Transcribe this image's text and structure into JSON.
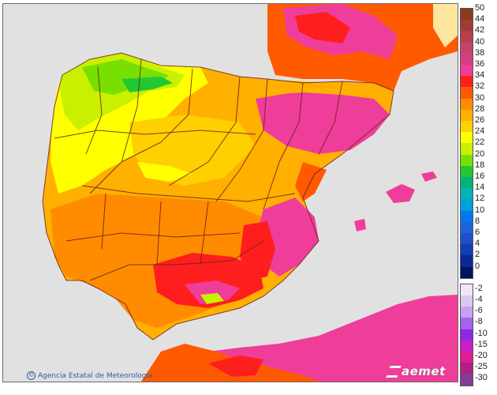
{
  "credit": {
    "text": "Agencia Estatal de Meteorología",
    "symbol": "©"
  },
  "logo": {
    "text": "aemet",
    "icon": "aemet-logo"
  },
  "legend": {
    "positive": [
      {
        "label": "50",
        "color": "#8b3a1a"
      },
      {
        "label": "44",
        "color": "#a33a3a"
      },
      {
        "label": "42",
        "color": "#b5404a"
      },
      {
        "label": "40",
        "color": "#c8436a"
      },
      {
        "label": "38",
        "color": "#d73d82"
      },
      {
        "label": "36",
        "color": "#ef3d9a"
      },
      {
        "label": "34",
        "color": "#ff1e1e"
      },
      {
        "label": "32",
        "color": "#ff5a00"
      },
      {
        "label": "30",
        "color": "#ff8c00"
      },
      {
        "label": "28",
        "color": "#ffb000"
      },
      {
        "label": "26",
        "color": "#ffd000"
      },
      {
        "label": "24",
        "color": "#ffff00"
      },
      {
        "label": "22",
        "color": "#c8f000"
      },
      {
        "label": "20",
        "color": "#78e000"
      },
      {
        "label": "18",
        "color": "#22c832"
      },
      {
        "label": "16",
        "color": "#00b478"
      },
      {
        "label": "14",
        "color": "#00b4b4"
      },
      {
        "label": "12",
        "color": "#00a0dc"
      },
      {
        "label": "10",
        "color": "#0078f0"
      },
      {
        "label": "8",
        "color": "#1e64dc"
      },
      {
        "label": "6",
        "color": "#1e50c8"
      },
      {
        "label": "4",
        "color": "#143cb4"
      },
      {
        "label": "2",
        "color": "#0a2896"
      },
      {
        "label": "0",
        "color": "#001464"
      }
    ],
    "negative": [
      {
        "label": "-2",
        "color": "#f0e6f8"
      },
      {
        "label": "-4",
        "color": "#dcc8f0"
      },
      {
        "label": "-6",
        "color": "#c8a0f0"
      },
      {
        "label": "-8",
        "color": "#a064f0"
      },
      {
        "label": "-10",
        "color": "#8c28e6"
      },
      {
        "label": "-15",
        "color": "#c81ec8"
      },
      {
        "label": "-20",
        "color": "#dc1e96"
      },
      {
        "label": "-25",
        "color": "#b41e82"
      },
      {
        "label": "-30",
        "color": "#823c96"
      }
    ]
  },
  "map": {
    "land_colors": {
      "sea": "#e1e1e1",
      "cool": "#78e000",
      "mild": "#ffff00",
      "warm": "#ffd000",
      "warmer": "#ffb000",
      "hot": "#ff8c00",
      "very_hot": "#ff5a00",
      "extreme": "#ff1e1e",
      "peak": "#ef3d9a",
      "pale": "#ffe6a0",
      "border": "#6e1e1e"
    }
  }
}
